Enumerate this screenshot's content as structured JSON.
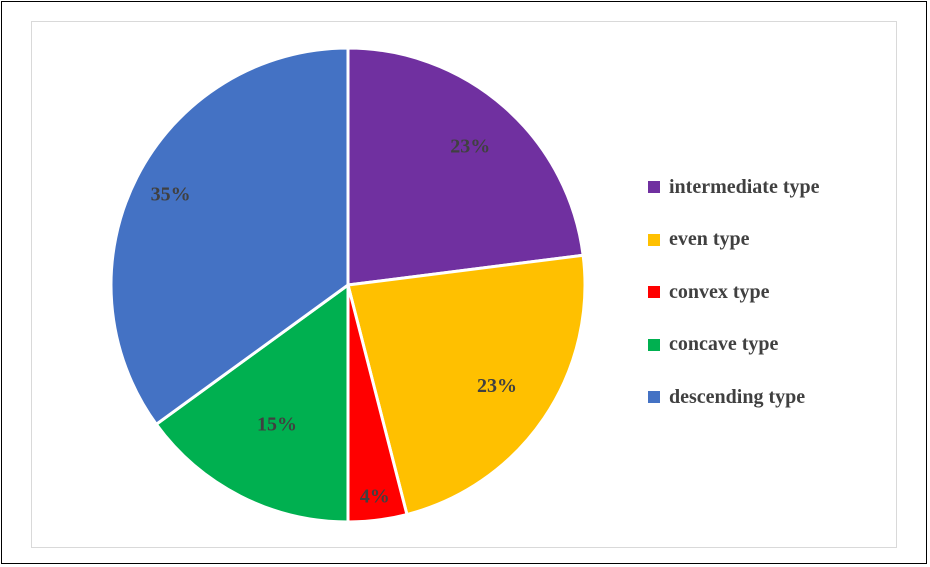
{
  "chart_data": {
    "type": "pie",
    "title": "",
    "legend_position": "right",
    "slices": [
      {
        "name": "intermediate type",
        "value": 23,
        "label": "23%",
        "color": "#7030A0"
      },
      {
        "name": "even type",
        "value": 23,
        "label": "23%",
        "color": "#FFC000"
      },
      {
        "name": "convex type",
        "value": 4,
        "label": "4%",
        "color": "#FF0000"
      },
      {
        "name": "concave type",
        "value": 15,
        "label": "15%",
        "color": "#00B050"
      },
      {
        "name": "descending type",
        "value": 35,
        "label": "35%",
        "color": "#4472C4"
      }
    ]
  }
}
